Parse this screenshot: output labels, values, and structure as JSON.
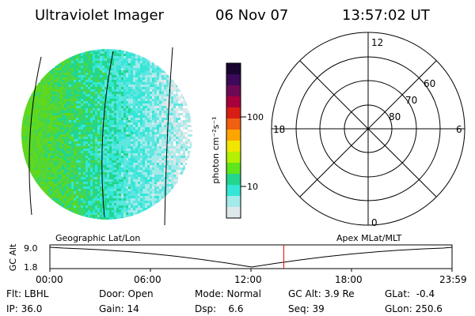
{
  "header": {
    "title": "Ultraviolet Imager",
    "date": "06 Nov 07",
    "time": "13:57:02 UT"
  },
  "colorbar": {
    "label": "photon cm⁻²s⁻¹",
    "ticks": [
      "100",
      "10"
    ],
    "colors": [
      "#1a0530",
      "#3c0a58",
      "#6e0a55",
      "#a8003c",
      "#d81e14",
      "#f06010",
      "#ffa500",
      "#f2e600",
      "#b4f000",
      "#5fe51a",
      "#22d68e",
      "#34e6d6",
      "#a4eaea",
      "#dde8ea"
    ]
  },
  "polar": {
    "mlt_labels": [
      "12",
      "18",
      "6",
      "0"
    ],
    "lat_labels": [
      "60",
      "70",
      "80"
    ]
  },
  "timeline": {
    "left_label": "Geographic Lat/Lon",
    "right_label": "Apex MLat/MLT",
    "axis_label": "GC Alt",
    "y_ticks": [
      "9.0",
      "1.8"
    ],
    "x_ticks": [
      "00:00",
      "06:00",
      "12:00",
      "18:00",
      "23:59"
    ],
    "current_time_fraction": 0.5816,
    "marker_color": "#ff0000"
  },
  "status": {
    "row1": {
      "filter": "Flt: LBHL",
      "door": "Door: Open",
      "mode": "Mode: Normal",
      "gc_alt": "GC Alt: 3.9 Re",
      "glat": "GLat:  -0.4"
    },
    "row2": {
      "ip": "IP: 36.0",
      "gain": "Gain: 14",
      "dsp": "Dsp:    6.6",
      "seq": "Seq: 39",
      "glon": "GLon: 250.6"
    }
  }
}
